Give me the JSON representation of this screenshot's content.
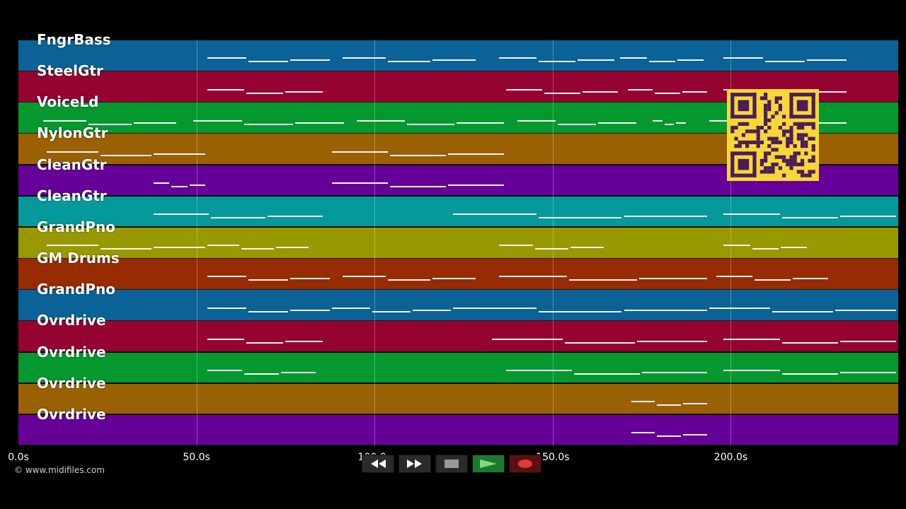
{
  "tracks": [
    {
      "name": "FngrBass",
      "color": "#0a6296"
    },
    {
      "name": "SteelGtr",
      "color": "#950330"
    },
    {
      "name": "VoiceLd",
      "color": "#05982f"
    },
    {
      "name": "NylonGtr",
      "color": "#9a6004"
    },
    {
      "name": "CleanGtr",
      "color": "#650098"
    },
    {
      "name": "CleanGtr",
      "color": "#05999b"
    },
    {
      "name": "GrandPno",
      "color": "#989800"
    },
    {
      "name": "GM Drums",
      "color": "#972b02"
    },
    {
      "name": "GrandPno",
      "color": "#0a6296"
    },
    {
      "name": "Ovrdrive",
      "color": "#950330"
    },
    {
      "name": "Ovrdrive",
      "color": "#05982f"
    },
    {
      "name": "Ovrdrive",
      "color": "#9a6004"
    },
    {
      "name": "Ovrdrive",
      "color": "#650098"
    }
  ],
  "time_axis": {
    "ticks": [
      {
        "seconds": 0,
        "label": "0.0s"
      },
      {
        "seconds": 50,
        "label": "50.0s"
      },
      {
        "seconds": 100,
        "label": "100.0s"
      },
      {
        "seconds": 150,
        "label": "150.0s"
      },
      {
        "seconds": 200,
        "label": "200.0s"
      }
    ],
    "max_seconds": 247
  },
  "copyright": "© www.midifiles.com",
  "transport": [
    {
      "name": "rewind-button",
      "icon": "rewind-icon"
    },
    {
      "name": "fast-forward-button",
      "icon": "fast-forward-icon"
    },
    {
      "name": "stop-button",
      "icon": "stop-icon"
    },
    {
      "name": "play-button",
      "icon": "play-icon"
    },
    {
      "name": "record-button",
      "icon": "record-icon"
    }
  ],
  "note_segments": [
    [
      [
        53,
        88
      ],
      [
        91,
        129
      ],
      [
        135,
        168
      ],
      [
        169,
        193
      ],
      [
        198,
        233
      ]
    ],
    [
      [
        53,
        86
      ],
      [
        137,
        169
      ],
      [
        171,
        194
      ],
      [
        198,
        233
      ]
    ],
    [
      [
        7,
        45
      ],
      [
        49,
        92
      ],
      [
        95,
        137
      ],
      [
        140,
        174
      ],
      [
        178,
        188
      ],
      [
        194,
        233
      ]
    ],
    [
      [
        8,
        53
      ],
      [
        88,
        137
      ]
    ],
    [
      [
        38,
        53
      ],
      [
        88,
        137
      ]
    ],
    [
      [
        38,
        86
      ],
      [
        122,
        194
      ],
      [
        198,
        247
      ]
    ],
    [
      [
        8,
        53
      ],
      [
        53,
        82
      ],
      [
        135,
        165
      ],
      [
        198,
        222
      ]
    ],
    [
      [
        53,
        88
      ],
      [
        91,
        129
      ],
      [
        135,
        194
      ],
      [
        196,
        228
      ]
    ],
    [
      [
        53,
        88
      ],
      [
        88,
        122
      ],
      [
        122,
        194
      ],
      [
        194,
        247
      ]
    ],
    [
      [
        53,
        86
      ],
      [
        133,
        194
      ],
      [
        198,
        247
      ]
    ],
    [
      [
        53,
        84
      ],
      [
        137,
        194
      ],
      [
        198,
        247
      ]
    ],
    [
      [
        172,
        194
      ]
    ],
    [
      [
        172,
        194
      ]
    ]
  ]
}
